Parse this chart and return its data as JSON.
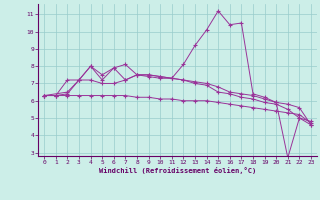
{
  "background_color": "#cceee8",
  "line_color": "#993399",
  "grid_color": "#99cccc",
  "xlabel": "Windchill (Refroidissement éolien,°C)",
  "ylim": [
    2.8,
    11.6
  ],
  "xlim": [
    -0.5,
    23.5
  ],
  "yticks": [
    3,
    4,
    5,
    6,
    7,
    8,
    9,
    10,
    11
  ],
  "xticks": [
    0,
    1,
    2,
    3,
    4,
    5,
    6,
    7,
    8,
    9,
    10,
    11,
    12,
    13,
    14,
    15,
    16,
    17,
    18,
    19,
    20,
    21,
    22,
    23
  ],
  "series": [
    {
      "x": [
        0,
        1,
        2,
        3,
        4,
        5,
        6,
        7,
        8,
        9,
        10,
        11,
        12,
        13,
        14,
        15,
        16,
        17,
        18,
        19,
        20,
        21,
        22,
        23
      ],
      "y": [
        6.3,
        6.3,
        6.3,
        6.3,
        6.3,
        6.3,
        6.3,
        6.3,
        6.2,
        6.2,
        6.1,
        6.1,
        6.0,
        6.0,
        6.0,
        5.9,
        5.8,
        5.7,
        5.6,
        5.5,
        5.4,
        5.3,
        5.2,
        4.7
      ]
    },
    {
      "x": [
        0,
        1,
        2,
        3,
        4,
        5,
        6,
        7,
        8,
        9,
        10,
        11,
        12,
        13,
        14,
        15,
        16,
        17,
        18,
        19,
        20,
        21,
        22,
        23
      ],
      "y": [
        6.3,
        6.3,
        7.2,
        7.2,
        8.0,
        7.5,
        7.9,
        8.1,
        7.5,
        7.4,
        7.3,
        7.3,
        7.2,
        7.1,
        7.0,
        6.8,
        6.5,
        6.4,
        6.3,
        6.1,
        5.9,
        5.8,
        5.6,
        4.6
      ]
    },
    {
      "x": [
        0,
        1,
        2,
        3,
        4,
        5,
        6,
        7,
        8,
        9,
        10,
        11,
        12,
        13,
        14,
        15,
        16,
        17,
        18,
        19,
        20,
        21,
        22,
        23
      ],
      "y": [
        6.3,
        6.3,
        6.4,
        7.2,
        7.2,
        7.0,
        7.0,
        7.2,
        7.5,
        7.5,
        7.4,
        7.3,
        8.1,
        9.2,
        10.1,
        11.2,
        10.4,
        10.5,
        6.4,
        6.2,
        5.9,
        2.7,
        5.0,
        4.8
      ]
    },
    {
      "x": [
        0,
        2,
        3,
        4,
        5,
        6,
        7,
        8,
        9,
        10,
        11,
        12,
        13,
        14,
        15,
        16,
        17,
        18,
        19,
        20,
        21,
        22,
        23
      ],
      "y": [
        6.3,
        6.5,
        7.2,
        8.0,
        7.2,
        7.9,
        7.2,
        7.5,
        7.5,
        7.4,
        7.3,
        7.2,
        7.0,
        6.9,
        6.5,
        6.4,
        6.2,
        6.1,
        5.9,
        5.8,
        5.5,
        5.0,
        4.6
      ]
    }
  ]
}
